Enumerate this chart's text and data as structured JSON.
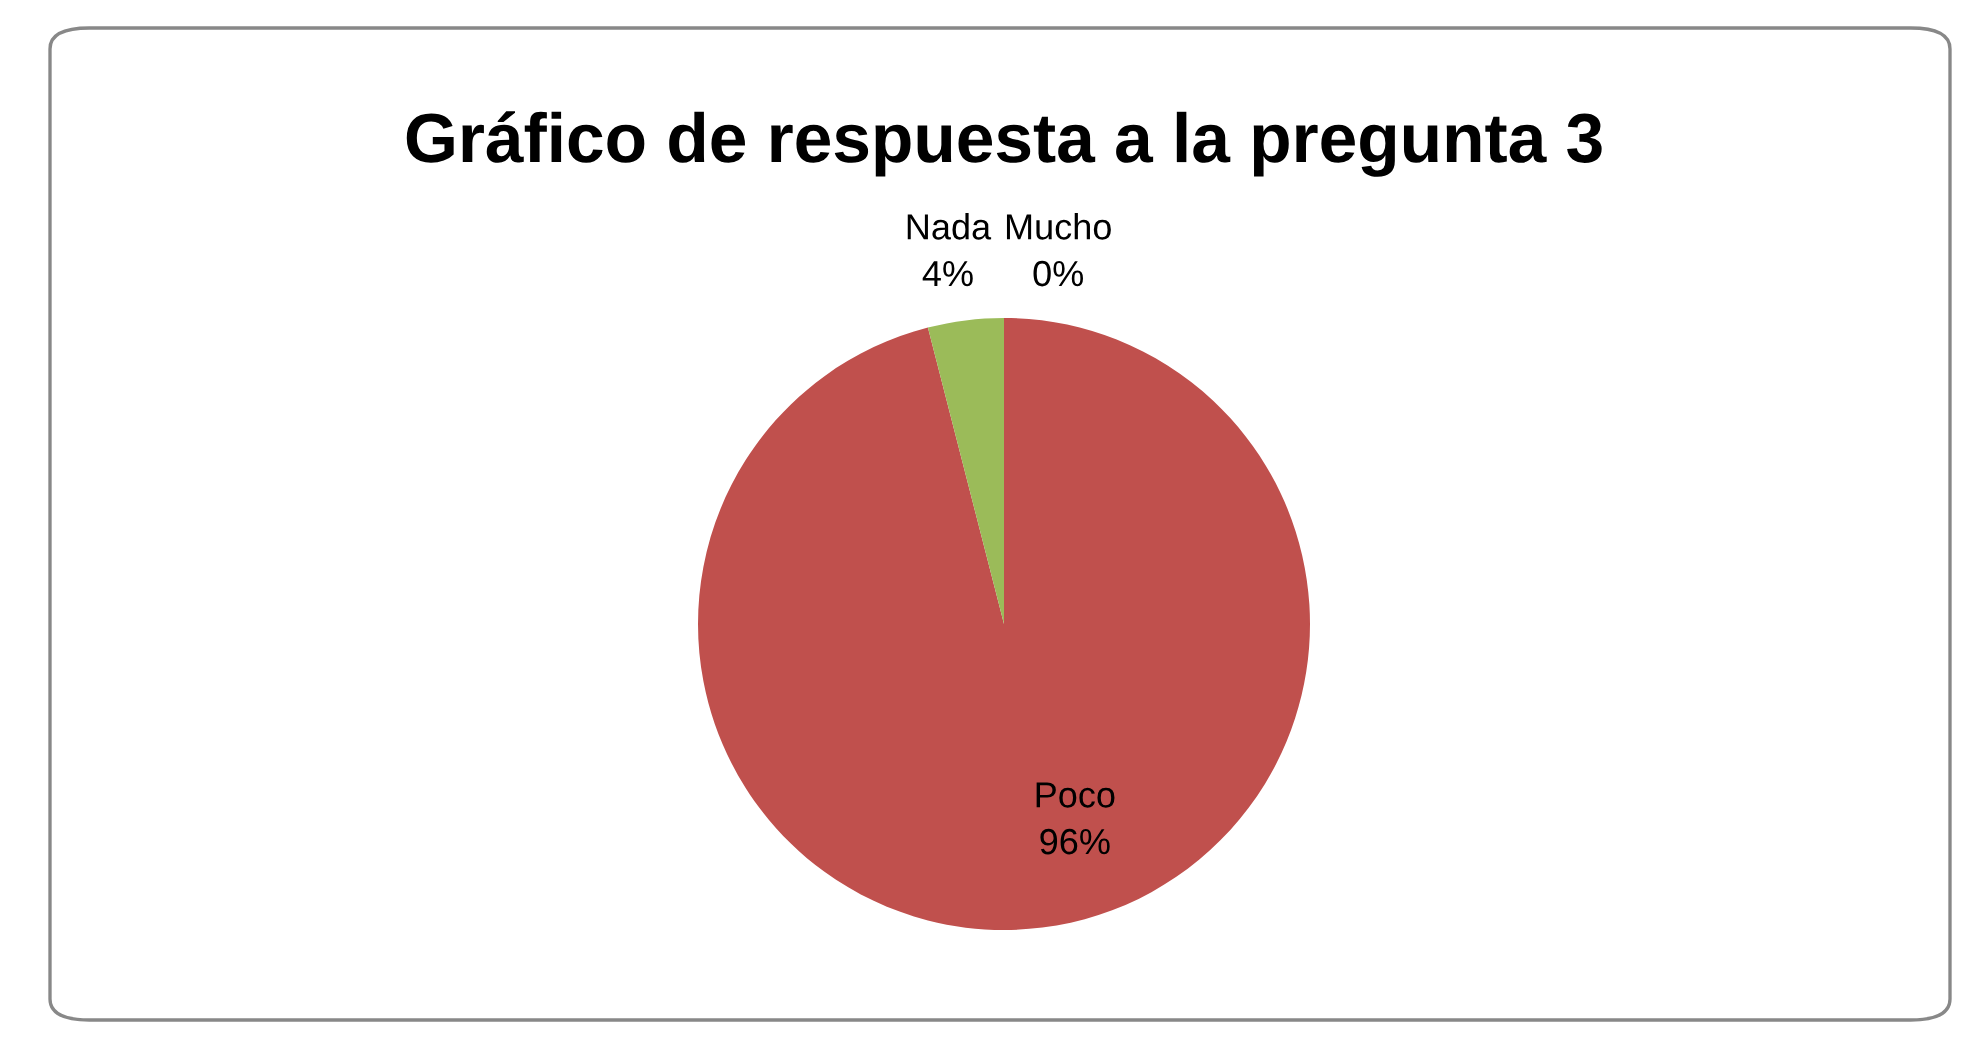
{
  "chart_data": {
    "type": "pie",
    "title": "Gráfico de respuesta a la pregunta 3",
    "categories": [
      "Mucho",
      "Poco",
      "Nada"
    ],
    "values": [
      0,
      96,
      4
    ],
    "value_labels": [
      "0%",
      "96%",
      "4%"
    ],
    "colors": [
      "#4f81bd",
      "#c0504d",
      "#9bbb59"
    ],
    "legend": false
  }
}
